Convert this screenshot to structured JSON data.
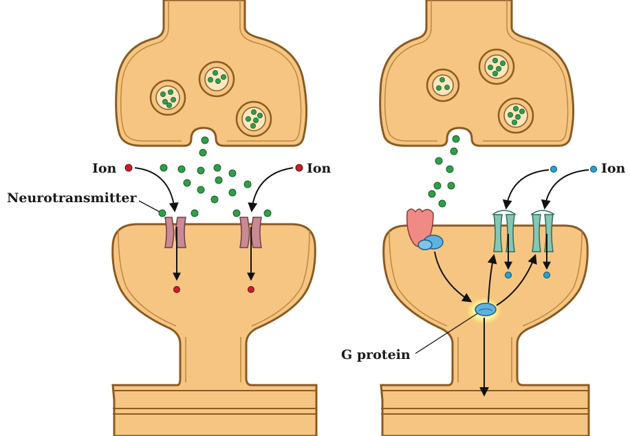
{
  "labels": {
    "ion_left": "Ion",
    "ion_right_a": "Ion",
    "ion_right_b": "Ion",
    "neurotransmitter": "Neurotransmitter",
    "g_protein": "G protein"
  },
  "colors": {
    "cell_fill": "#f6c581",
    "cell_stroke": "#8a5a22",
    "neurotransmitter": "#2f9e4a",
    "ion_red": "#c6202a",
    "ion_blue": "#2a9fd0",
    "ionotropic_channel": "#c98a93",
    "metabotropic_channel": "#86c7b4",
    "receptor": "#f08a84",
    "g_protein": "#5fb2e0",
    "glow": "#fff7a3"
  },
  "icons": [
    "vesicle-icon",
    "neurotransmitter-dot-icon",
    "ion-dot-icon",
    "ion-channel-icon",
    "receptor-icon",
    "g-protein-icon",
    "arrow-icon"
  ]
}
